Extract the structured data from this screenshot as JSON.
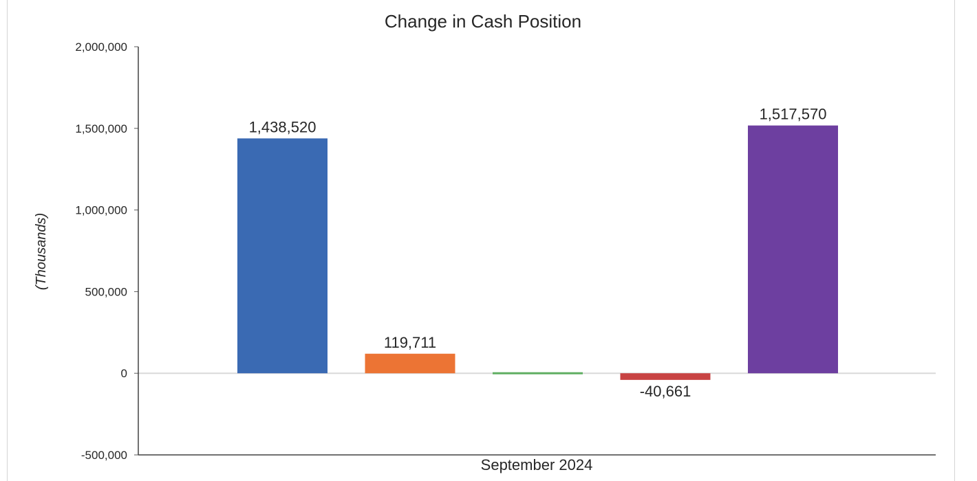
{
  "chart_data": {
    "type": "bar",
    "title": "Change in Cash Position",
    "ylabel": "(Thousands)",
    "xlabel": "",
    "categories": [
      "September 2024"
    ],
    "ylim": [
      -500000,
      2000000
    ],
    "yticks": [
      2000000,
      1500000,
      1000000,
      500000,
      0,
      -500000
    ],
    "ytick_labels": [
      "2,000,000",
      "1,500,000",
      "1,000,000",
      "500,000",
      "0",
      "-500,000"
    ],
    "grid": false,
    "legend": "none",
    "series": [
      {
        "values": [
          1438520
        ],
        "color": "#3a6ab3",
        "label": "1,438,520"
      },
      {
        "values": [
          119711
        ],
        "color": "#ec7434",
        "label": "119,711"
      },
      {
        "values": [
          0
        ],
        "color": "#5fae61",
        "label": ""
      },
      {
        "values": [
          -40661
        ],
        "color": "#c84343",
        "label": "-40,661"
      },
      {
        "values": [
          1517570
        ],
        "color": "#6d3fa0",
        "label": "1,517,570"
      }
    ]
  }
}
